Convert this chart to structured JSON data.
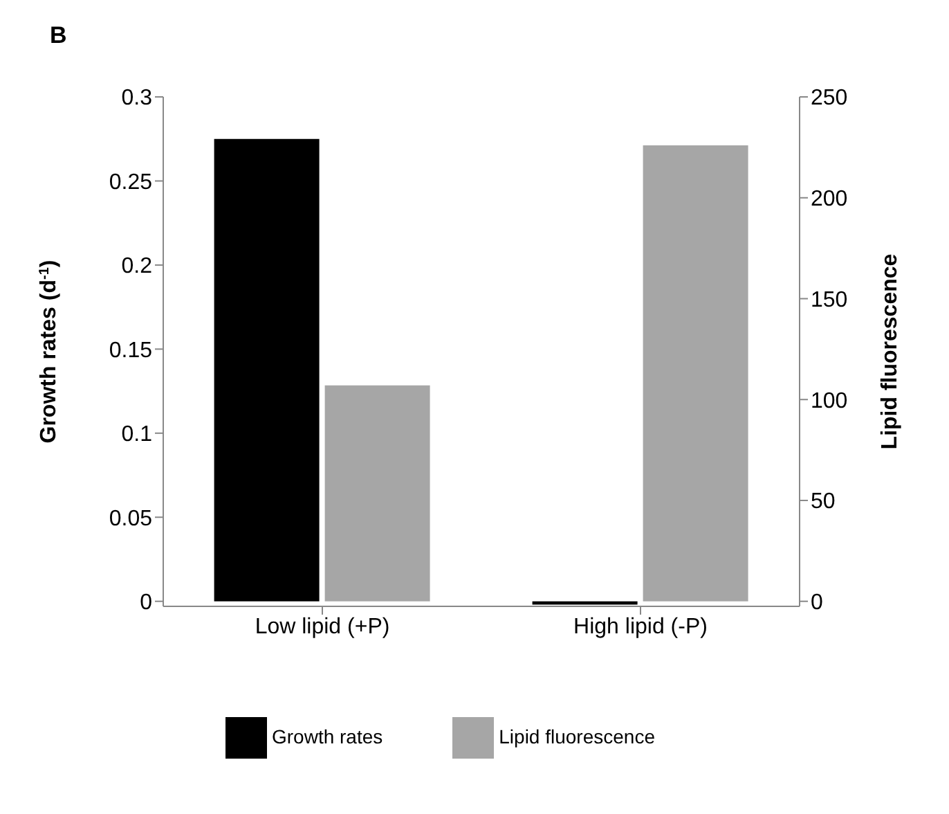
{
  "chart_data": {
    "type": "bar",
    "title": "B",
    "ylabel": "Growth rates (d$^{-1}$)",
    "y2label": "Lipid fluorescence",
    "categories": [
      "Low lipid (+P)",
      "High lipid (-P)"
    ],
    "series": [
      {
        "name": "Growth rates",
        "color": "#000000",
        "values": [
          0.275,
          -0.002
        ]
      },
      {
        "name": "Lipid fluorescence",
        "color": "#a6a6a6",
        "values": [
          107,
          226
        ],
        "axis": "y2"
      }
    ],
    "ylim": [
      -0.003,
      0.3
    ],
    "yticks": [
      0,
      0.05,
      0.1,
      0.15,
      0.2,
      0.25,
      0.3
    ],
    "y2lim": [
      -2.5,
      250
    ],
    "y2ticks": [
      0,
      50,
      100,
      150,
      200,
      250
    ],
    "grid": false,
    "legend": "bottom"
  }
}
